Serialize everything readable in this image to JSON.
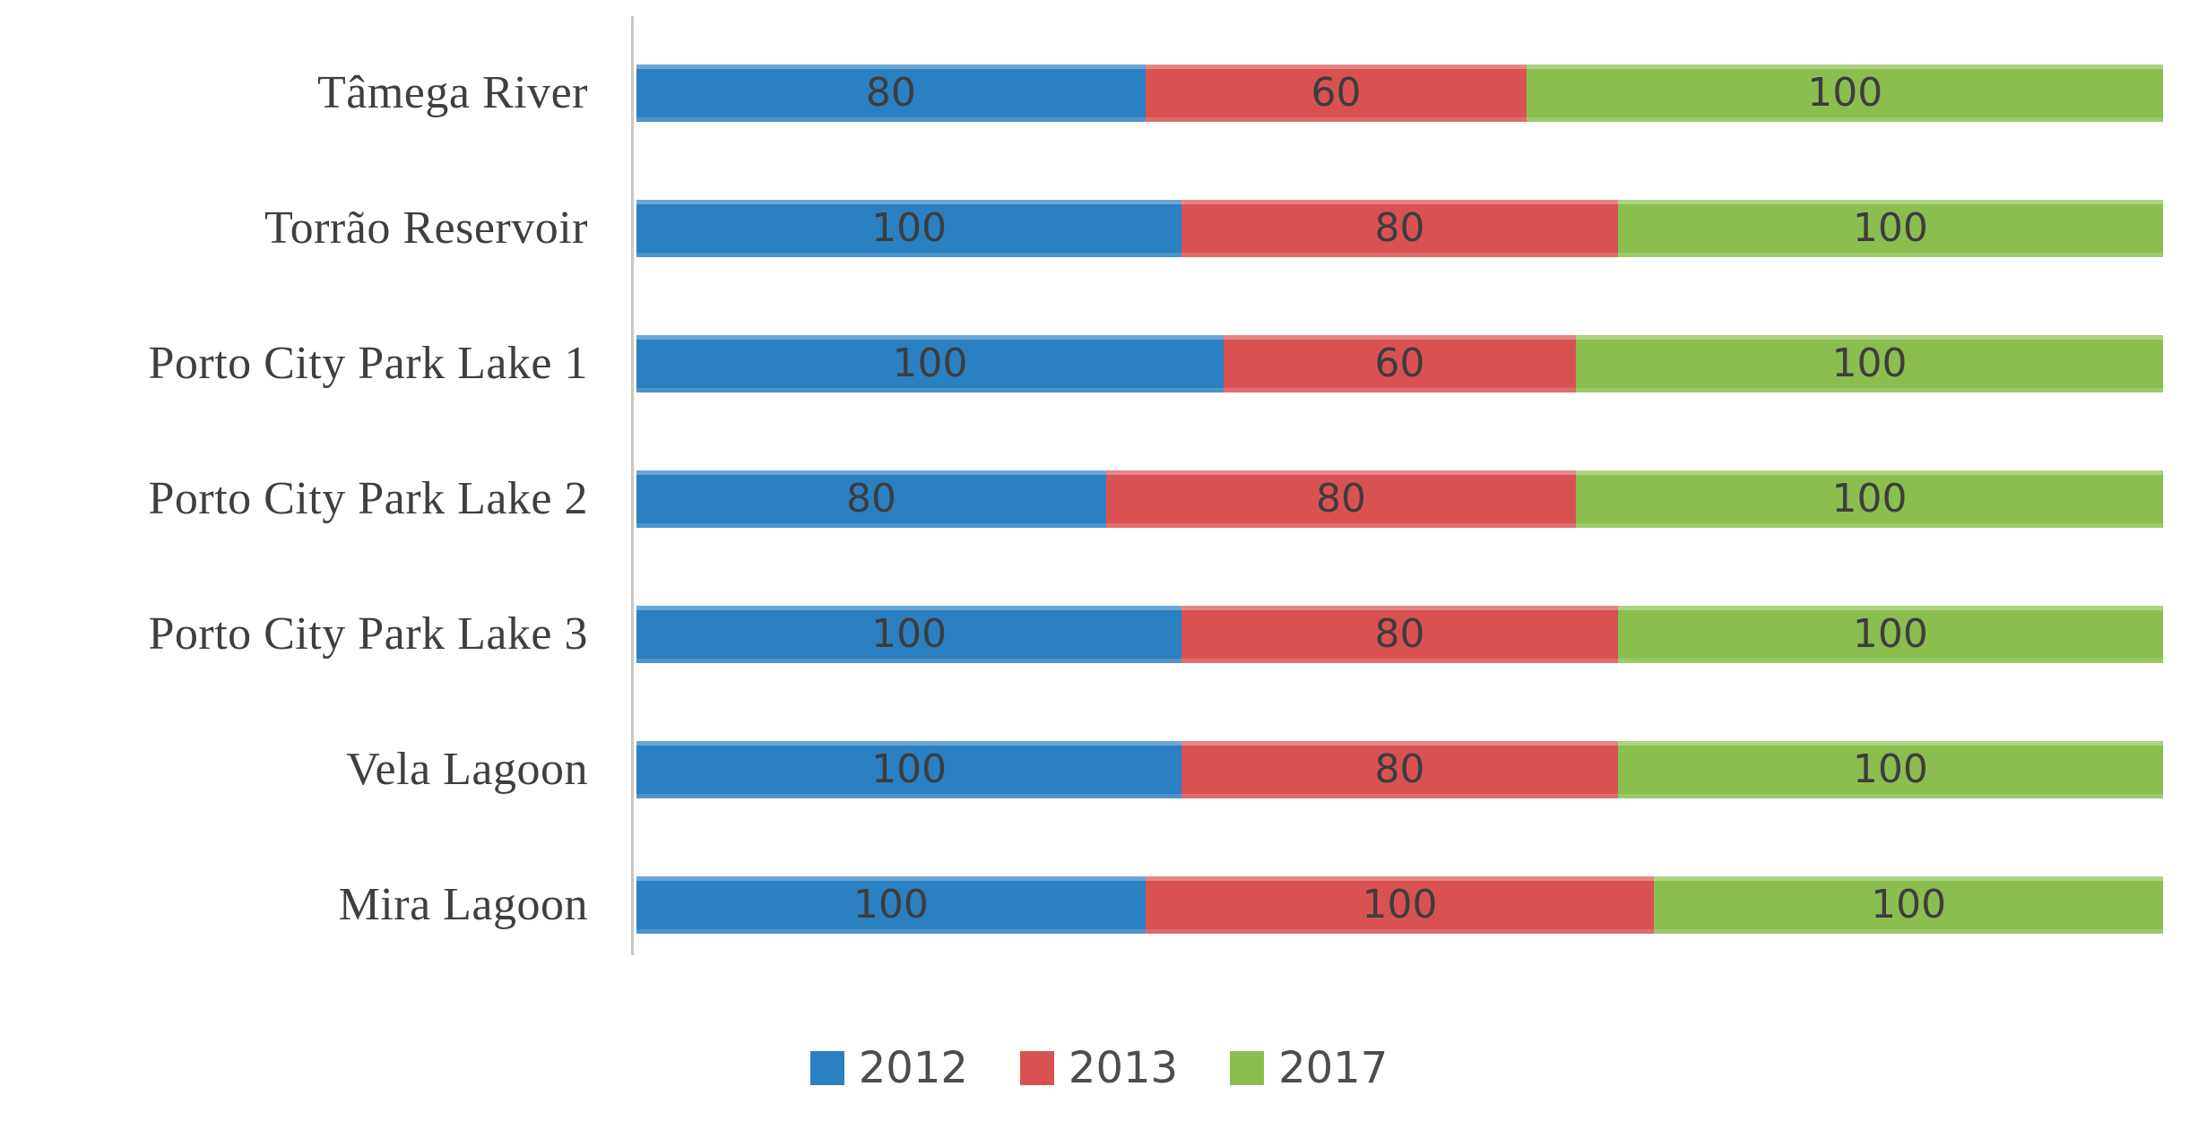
{
  "chart_data": {
    "type": "bar",
    "subtype": "horizontal-100%-stacked",
    "title": "",
    "xlabel": "",
    "ylabel": "",
    "categories": [
      "Tâmega River",
      "Torrão Reservoir",
      "Porto City Park Lake 1",
      "Porto City Park Lake 2",
      "Porto City Park Lake 3",
      "Vela Lagoon",
      "Mira Lagoon"
    ],
    "series": [
      {
        "name": "2012",
        "color": "#2b80c2",
        "values": [
          80,
          100,
          100,
          80,
          100,
          100,
          100
        ]
      },
      {
        "name": "2013",
        "color": "#d95251",
        "values": [
          60,
          80,
          60,
          80,
          80,
          80,
          100
        ]
      },
      {
        "name": "2017",
        "color": "#8abf4f",
        "values": [
          100,
          100,
          100,
          100,
          100,
          100,
          100
        ]
      }
    ],
    "data_labels_visible": true,
    "data_label_color": "#3d3d3d",
    "category_label_color": "#3f3f3f",
    "axis_line_color": "#c8c8c8",
    "grid": false,
    "legend_position": "bottom",
    "legend_labels": [
      "2012",
      "2013",
      "2017"
    ]
  }
}
